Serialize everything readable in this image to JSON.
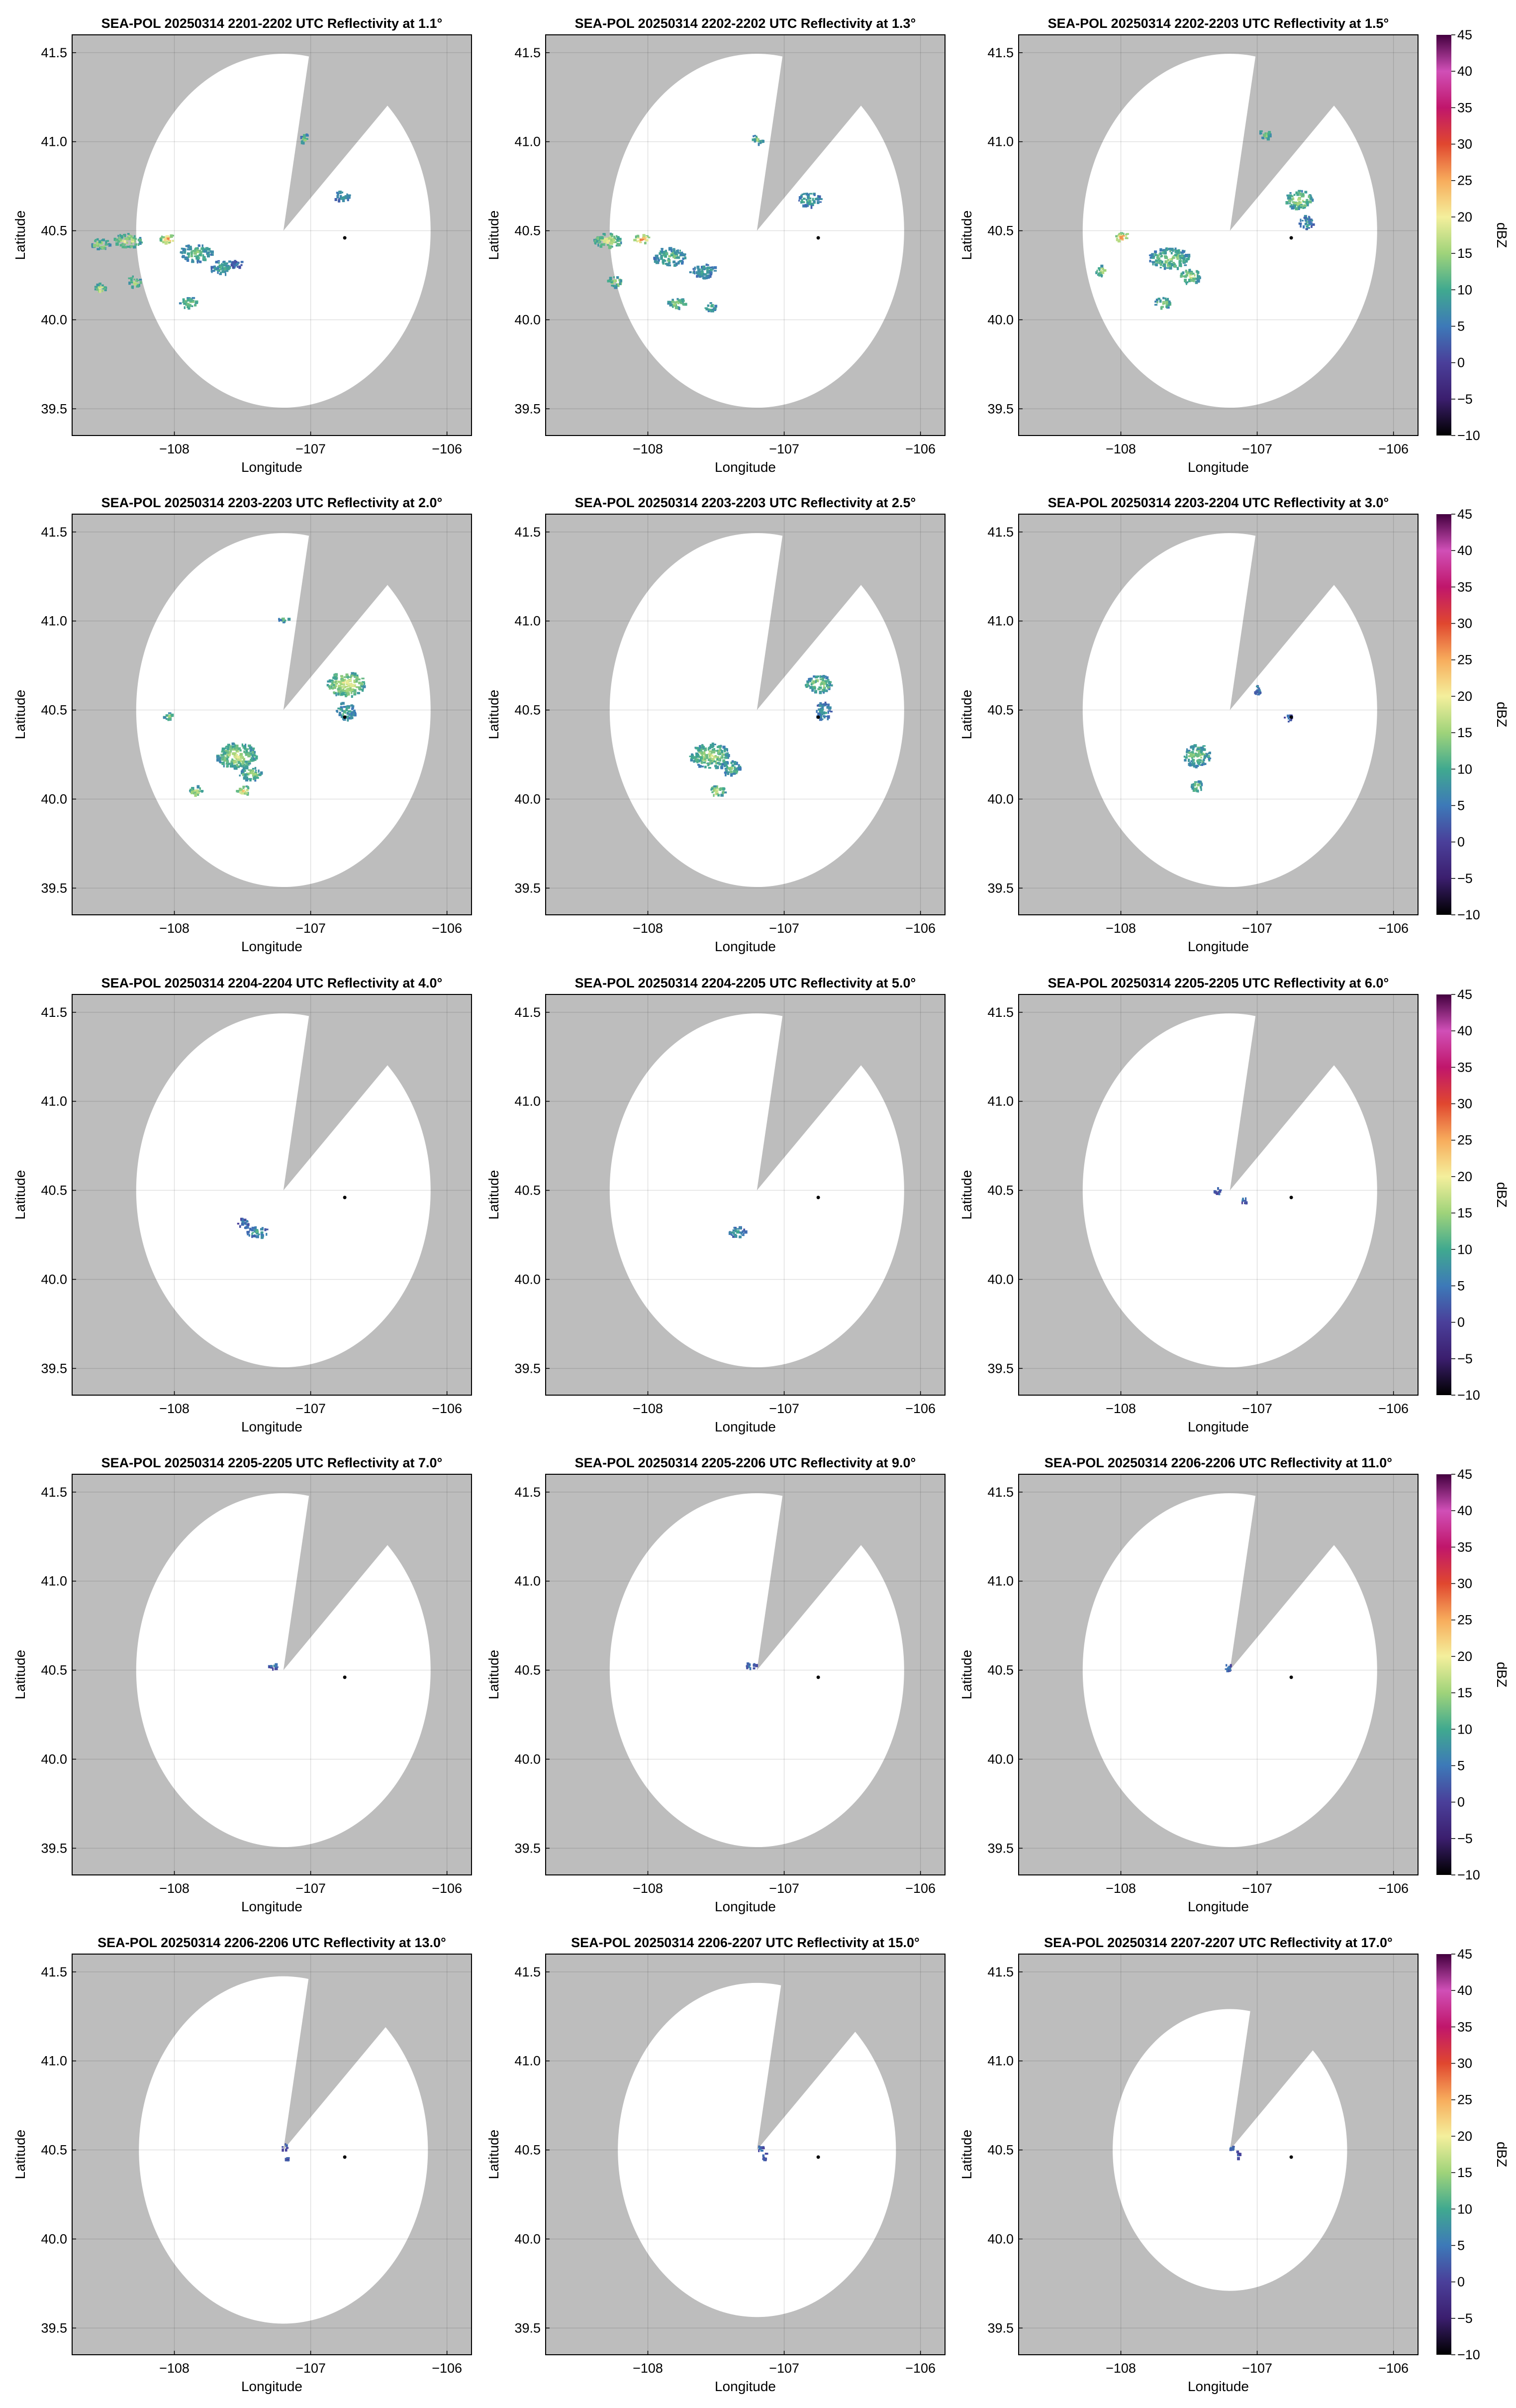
{
  "chart_data": {
    "type": "radar-ppi-grid",
    "xlabel": "Longitude",
    "ylabel": "Latitude",
    "xlim": [
      -108.75,
      -105.82
    ],
    "ylim": [
      39.35,
      41.6
    ],
    "xticks": [
      -108,
      -107,
      -106
    ],
    "xtick_labels": [
      "−108",
      "−107",
      "−106"
    ],
    "yticks": [
      39.5,
      40.0,
      40.5,
      41.0,
      41.5
    ],
    "ytick_labels": [
      "39.5",
      "40.0",
      "40.5",
      "41.0",
      "41.5"
    ],
    "radar_site": {
      "lon": -107.2,
      "lat": 40.5
    },
    "marker": {
      "lon": -106.75,
      "lat": 40.46
    },
    "blocked_sector_deg": [
      10,
      45
    ],
    "colorbar": {
      "label": "dBZ",
      "min": -10,
      "max": 45,
      "ticks": [
        -10,
        -5,
        0,
        5,
        10,
        15,
        20,
        25,
        30,
        35,
        40,
        45
      ],
      "tick_labels": [
        "−10",
        "−5",
        "0",
        "5",
        "10",
        "15",
        "20",
        "25",
        "30",
        "35",
        "40",
        "45"
      ]
    },
    "panels": [
      {
        "title": "SEA-POL 20250314 2201-2202 UTC Reflectivity at 1.1°",
        "range_deg": 1.08,
        "echoes": [
          {
            "lon": -108.05,
            "lat": 40.46,
            "dbz": 28,
            "rx": 0.06,
            "ry": 0.025
          },
          {
            "lon": -108.35,
            "lat": 40.45,
            "dbz": 20,
            "rx": 0.1,
            "ry": 0.04
          },
          {
            "lon": -108.55,
            "lat": 40.43,
            "dbz": 18,
            "rx": 0.07,
            "ry": 0.03
          },
          {
            "lon": -107.85,
            "lat": 40.38,
            "dbz": 14,
            "rx": 0.12,
            "ry": 0.05
          },
          {
            "lon": -107.65,
            "lat": 40.3,
            "dbz": 10,
            "rx": 0.1,
            "ry": 0.04
          },
          {
            "lon": -107.55,
            "lat": 40.32,
            "dbz": 5,
            "rx": 0.05,
            "ry": 0.02
          },
          {
            "lon": -108.3,
            "lat": 40.22,
            "dbz": 18,
            "rx": 0.05,
            "ry": 0.03
          },
          {
            "lon": -108.55,
            "lat": 40.18,
            "dbz": 20,
            "rx": 0.04,
            "ry": 0.03
          },
          {
            "lon": -107.9,
            "lat": 40.1,
            "dbz": 16,
            "rx": 0.07,
            "ry": 0.03
          },
          {
            "lon": -107.05,
            "lat": 41.02,
            "dbz": 15,
            "rx": 0.03,
            "ry": 0.03
          },
          {
            "lon": -106.78,
            "lat": 40.7,
            "dbz": 10,
            "rx": 0.06,
            "ry": 0.03
          }
        ]
      },
      {
        "title": "SEA-POL 20250314 2202-2202 UTC Reflectivity at 1.3°",
        "range_deg": 1.08,
        "echoes": [
          {
            "lon": -108.05,
            "lat": 40.46,
            "dbz": 28,
            "rx": 0.06,
            "ry": 0.025
          },
          {
            "lon": -108.3,
            "lat": 40.45,
            "dbz": 20,
            "rx": 0.1,
            "ry": 0.04
          },
          {
            "lon": -107.85,
            "lat": 40.36,
            "dbz": 14,
            "rx": 0.12,
            "ry": 0.05
          },
          {
            "lon": -107.6,
            "lat": 40.28,
            "dbz": 10,
            "rx": 0.1,
            "ry": 0.04
          },
          {
            "lon": -108.25,
            "lat": 40.22,
            "dbz": 18,
            "rx": 0.05,
            "ry": 0.03
          },
          {
            "lon": -107.8,
            "lat": 40.1,
            "dbz": 16,
            "rx": 0.07,
            "ry": 0.03
          },
          {
            "lon": -107.55,
            "lat": 40.08,
            "dbz": 14,
            "rx": 0.04,
            "ry": 0.03
          },
          {
            "lon": -107.2,
            "lat": 41.02,
            "dbz": 15,
            "rx": 0.04,
            "ry": 0.03
          },
          {
            "lon": -106.82,
            "lat": 40.68,
            "dbz": 12,
            "rx": 0.08,
            "ry": 0.04
          }
        ]
      },
      {
        "title": "SEA-POL 20250314 2202-2203 UTC Reflectivity at 1.5°",
        "range_deg": 1.08,
        "echoes": [
          {
            "lon": -108.0,
            "lat": 40.47,
            "dbz": 27,
            "rx": 0.05,
            "ry": 0.025
          },
          {
            "lon": -107.65,
            "lat": 40.35,
            "dbz": 16,
            "rx": 0.15,
            "ry": 0.06
          },
          {
            "lon": -107.5,
            "lat": 40.25,
            "dbz": 18,
            "rx": 0.08,
            "ry": 0.04
          },
          {
            "lon": -107.7,
            "lat": 40.1,
            "dbz": 16,
            "rx": 0.06,
            "ry": 0.03
          },
          {
            "lon": -108.15,
            "lat": 40.28,
            "dbz": 18,
            "rx": 0.04,
            "ry": 0.03
          },
          {
            "lon": -106.7,
            "lat": 40.68,
            "dbz": 18,
            "rx": 0.1,
            "ry": 0.05
          },
          {
            "lon": -106.65,
            "lat": 40.55,
            "dbz": 10,
            "rx": 0.05,
            "ry": 0.04
          },
          {
            "lon": -106.95,
            "lat": 41.05,
            "dbz": 15,
            "rx": 0.04,
            "ry": 0.03
          }
        ]
      },
      {
        "title": "SEA-POL 20250314 2203-2203 UTC Reflectivity at 2.0°",
        "range_deg": 1.08,
        "echoes": [
          {
            "lon": -106.75,
            "lat": 40.65,
            "dbz": 20,
            "rx": 0.14,
            "ry": 0.07
          },
          {
            "lon": -106.75,
            "lat": 40.5,
            "dbz": 12,
            "rx": 0.07,
            "ry": 0.05
          },
          {
            "lon": -107.55,
            "lat": 40.25,
            "dbz": 18,
            "rx": 0.15,
            "ry": 0.07
          },
          {
            "lon": -107.45,
            "lat": 40.15,
            "dbz": 16,
            "rx": 0.08,
            "ry": 0.04
          },
          {
            "lon": -107.5,
            "lat": 40.05,
            "dbz": 22,
            "rx": 0.05,
            "ry": 0.03
          },
          {
            "lon": -107.85,
            "lat": 40.05,
            "dbz": 18,
            "rx": 0.05,
            "ry": 0.03
          },
          {
            "lon": -108.05,
            "lat": 40.47,
            "dbz": 16,
            "rx": 0.04,
            "ry": 0.02
          },
          {
            "lon": -107.2,
            "lat": 41.02,
            "dbz": 14,
            "rx": 0.04,
            "ry": 0.02
          }
        ]
      },
      {
        "title": "SEA-POL 20250314 2203-2203 UTC Reflectivity at 2.5°",
        "range_deg": 1.08,
        "echoes": [
          {
            "lon": -106.75,
            "lat": 40.65,
            "dbz": 16,
            "rx": 0.1,
            "ry": 0.05
          },
          {
            "lon": -106.72,
            "lat": 40.5,
            "dbz": 10,
            "rx": 0.06,
            "ry": 0.05
          },
          {
            "lon": -107.55,
            "lat": 40.25,
            "dbz": 17,
            "rx": 0.15,
            "ry": 0.07
          },
          {
            "lon": -107.4,
            "lat": 40.18,
            "dbz": 14,
            "rx": 0.07,
            "ry": 0.04
          },
          {
            "lon": -107.5,
            "lat": 40.05,
            "dbz": 20,
            "rx": 0.06,
            "ry": 0.03
          }
        ]
      },
      {
        "title": "SEA-POL 20250314 2203-2204 UTC Reflectivity at 3.0°",
        "range_deg": 1.08,
        "echoes": [
          {
            "lon": -107.45,
            "lat": 40.25,
            "dbz": 15,
            "rx": 0.1,
            "ry": 0.06
          },
          {
            "lon": -107.45,
            "lat": 40.08,
            "dbz": 16,
            "rx": 0.05,
            "ry": 0.03
          },
          {
            "lon": -106.78,
            "lat": 40.46,
            "dbz": 5,
            "rx": 0.03,
            "ry": 0.02
          },
          {
            "lon": -107.0,
            "lat": 40.62,
            "dbz": 8,
            "rx": 0.03,
            "ry": 0.03
          }
        ]
      },
      {
        "title": "SEA-POL 20250314 2204-2204 UTC Reflectivity at 4.0°",
        "range_deg": 1.08,
        "echoes": [
          {
            "lon": -107.4,
            "lat": 40.27,
            "dbz": 10,
            "rx": 0.08,
            "ry": 0.03
          },
          {
            "lon": -107.5,
            "lat": 40.32,
            "dbz": 6,
            "rx": 0.04,
            "ry": 0.03
          }
        ]
      },
      {
        "title": "SEA-POL 20250314 2204-2205 UTC Reflectivity at 5.0°",
        "range_deg": 1.08,
        "echoes": [
          {
            "lon": -107.35,
            "lat": 40.27,
            "dbz": 10,
            "rx": 0.06,
            "ry": 0.03
          }
        ]
      },
      {
        "title": "SEA-POL 20250314 2205-2205 UTC Reflectivity at 6.0°",
        "range_deg": 1.08,
        "echoes": [
          {
            "lon": -107.3,
            "lat": 40.5,
            "dbz": 4,
            "rx": 0.03,
            "ry": 0.02
          },
          {
            "lon": -107.1,
            "lat": 40.45,
            "dbz": 5,
            "rx": 0.02,
            "ry": 0.02
          }
        ]
      },
      {
        "title": "SEA-POL 20250314 2205-2205 UTC Reflectivity at 7.0°",
        "range_deg": 1.08,
        "echoes": [
          {
            "lon": -107.28,
            "lat": 40.53,
            "dbz": 5,
            "rx": 0.04,
            "ry": 0.02
          }
        ]
      },
      {
        "title": "SEA-POL 20250314 2205-2206 UTC Reflectivity at 9.0°",
        "range_deg": 1.08,
        "echoes": [
          {
            "lon": -107.25,
            "lat": 40.53,
            "dbz": 5,
            "rx": 0.04,
            "ry": 0.02
          }
        ]
      },
      {
        "title": "SEA-POL 20250314 2206-2206 UTC Reflectivity at 11.0°",
        "range_deg": 1.08,
        "echoes": [
          {
            "lon": -107.22,
            "lat": 40.52,
            "dbz": 5,
            "rx": 0.03,
            "ry": 0.02
          }
        ]
      },
      {
        "title": "SEA-POL 20250314 2206-2206 UTC Reflectivity at 13.0°",
        "range_deg": 1.06,
        "echoes": [
          {
            "lon": -107.2,
            "lat": 40.52,
            "dbz": 5,
            "rx": 0.02,
            "ry": 0.02
          },
          {
            "lon": -107.18,
            "lat": 40.46,
            "dbz": 2,
            "rx": 0.01,
            "ry": 0.02
          }
        ]
      },
      {
        "title": "SEA-POL 20250314 2206-2207 UTC Reflectivity at 15.0°",
        "range_deg": 1.02,
        "echoes": [
          {
            "lon": -107.18,
            "lat": 40.52,
            "dbz": 5,
            "rx": 0.02,
            "ry": 0.02
          },
          {
            "lon": -107.15,
            "lat": 40.47,
            "dbz": 2,
            "rx": 0.015,
            "ry": 0.02
          }
        ]
      },
      {
        "title": "SEA-POL 20250314 2207-2207 UTC Reflectivity at 17.0°",
        "range_deg": 0.86,
        "echoes": [
          {
            "lon": -107.2,
            "lat": 40.52,
            "dbz": 5,
            "rx": 0.02,
            "ry": 0.015
          },
          {
            "lon": -107.15,
            "lat": 40.48,
            "dbz": 2,
            "rx": 0.015,
            "ry": 0.02
          }
        ]
      }
    ]
  }
}
